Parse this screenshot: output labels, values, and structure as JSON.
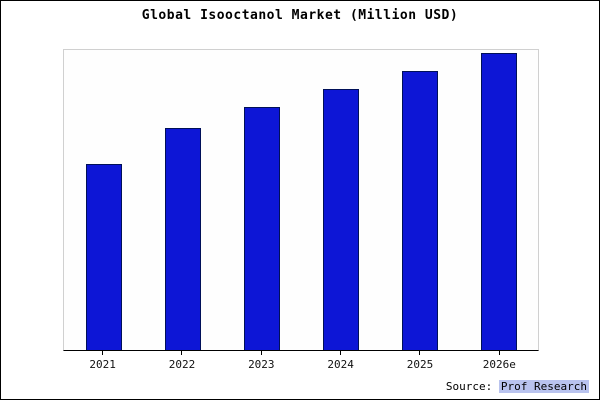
{
  "chart_data": {
    "type": "bar",
    "title": "Global Isooctanol Market (Million USD)",
    "categories": [
      "2021",
      "2022",
      "2023",
      "2024",
      "2025",
      "2026e"
    ],
    "values": [
      62,
      74,
      81,
      87,
      93,
      99
    ],
    "value_unit": "relative-bar-height-percent (no y-axis labels shown)",
    "xlabel": "",
    "ylabel": "",
    "ylim": [
      0,
      100
    ],
    "grid": false,
    "legend": false,
    "bar_color": "#0d16d6",
    "bar_border_color": "#001058"
  },
  "source": {
    "prefix": "Source: ",
    "brand": "Prof Research"
  }
}
